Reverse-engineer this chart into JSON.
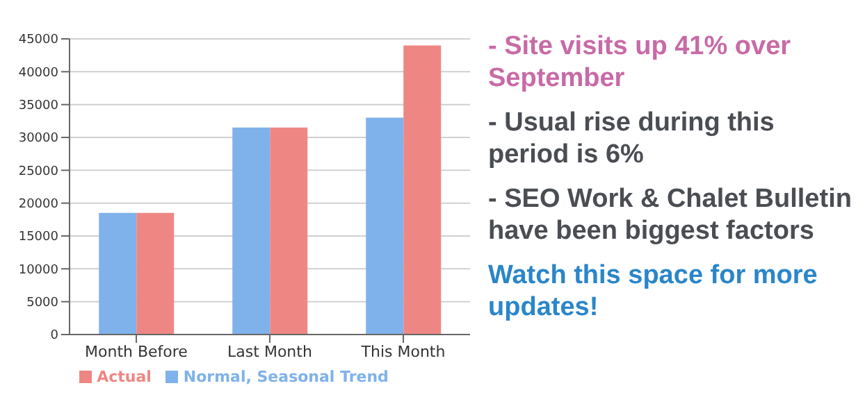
{
  "chart_data": {
    "type": "bar",
    "categories": [
      "Month Before",
      "Last Month",
      "This Month"
    ],
    "series": [
      {
        "name": "Normal, Seasonal Trend",
        "color": "#7fb2ea",
        "values": [
          18500,
          31500,
          33000
        ]
      },
      {
        "name": "Actual",
        "color": "#ee8783",
        "values": [
          18500,
          31500,
          44000
        ]
      }
    ],
    "ylim": [
      0,
      45000
    ],
    "yticks": [
      0,
      5000,
      10000,
      15000,
      20000,
      25000,
      30000,
      35000,
      40000,
      45000
    ],
    "grid": "y",
    "legend": "bottom",
    "annotations": [
      "- Site visits up 41% over September",
      "- Usual rise during this period is 6%",
      "- SEO Work & Chalet Bulletin have been biggest factors",
      "Watch this space for more updates!"
    ]
  }
}
